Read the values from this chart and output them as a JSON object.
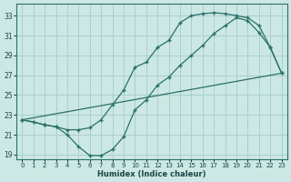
{
  "background_color": "#cce8e4",
  "grid_color": "#aad0cc",
  "line_color": "#2a706a",
  "xlim": [
    -0.5,
    23.5
  ],
  "ylim": [
    18.5,
    34.2
  ],
  "xticks": [
    0,
    1,
    2,
    3,
    4,
    5,
    6,
    7,
    8,
    9,
    10,
    11,
    12,
    13,
    14,
    15,
    16,
    17,
    18,
    19,
    20,
    21,
    22,
    23
  ],
  "yticks": [
    19,
    21,
    23,
    25,
    27,
    29,
    31,
    33
  ],
  "xlabel": "Humidex (Indice chaleur)",
  "line1_x": [
    0,
    1,
    2,
    3,
    4,
    5,
    6,
    7,
    8,
    9,
    10,
    11,
    12,
    13,
    14,
    15,
    16,
    17,
    18,
    19,
    20,
    21,
    22,
    23
  ],
  "line1_y": [
    22.5,
    22.3,
    22.0,
    21.8,
    21.0,
    19.8,
    18.9,
    18.9,
    19.5,
    20.8,
    23.5,
    24.5,
    26.0,
    26.8,
    28.0,
    29.0,
    30.0,
    31.2,
    32.0,
    32.8,
    32.5,
    31.3,
    29.8,
    27.2
  ],
  "line2_x": [
    0,
    2,
    3,
    4,
    5,
    6,
    7,
    8,
    9,
    10,
    11,
    12,
    13,
    14,
    15,
    16,
    17,
    18,
    19,
    20,
    21,
    22,
    23
  ],
  "line2_y": [
    22.5,
    22.0,
    21.8,
    21.5,
    21.5,
    21.7,
    22.5,
    24.0,
    25.5,
    27.8,
    28.3,
    29.8,
    30.5,
    32.3,
    33.0,
    33.2,
    33.3,
    33.2,
    33.0,
    32.8,
    32.0,
    29.8,
    27.2
  ],
  "line3_x": [
    0,
    23
  ],
  "line3_y": [
    22.5,
    27.2
  ]
}
